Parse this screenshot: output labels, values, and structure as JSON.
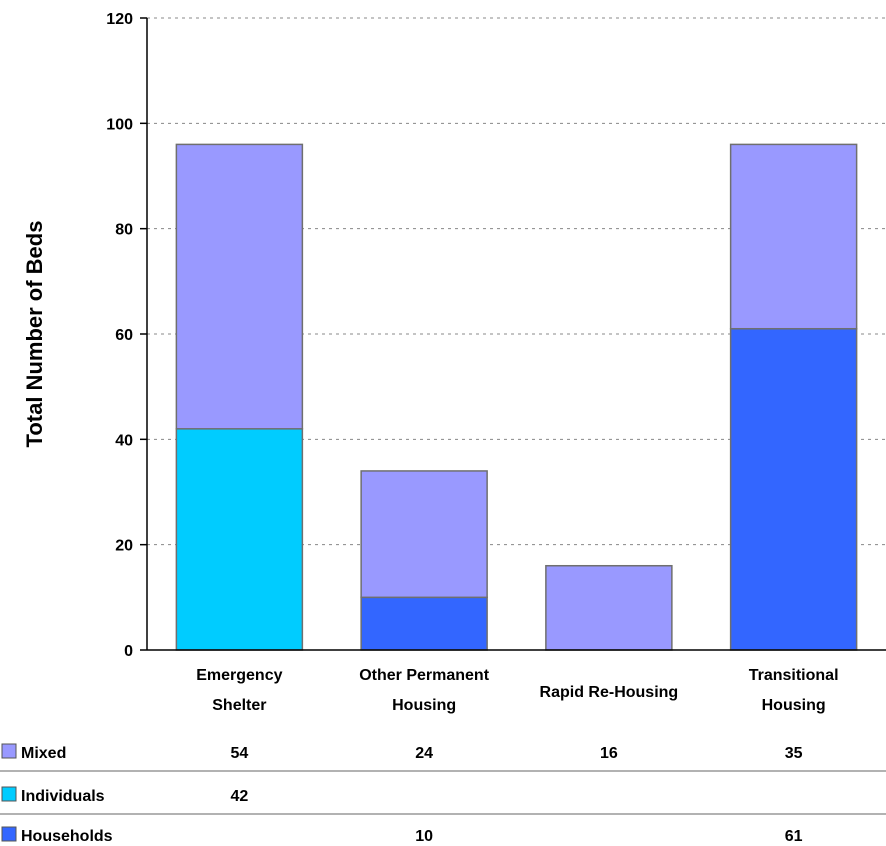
{
  "chart_data": {
    "type": "bar",
    "stacked": true,
    "categories": [
      [
        "Emergency",
        "Shelter"
      ],
      [
        "Other Permanent",
        "Housing"
      ],
      [
        "Rapid Re-Housing"
      ],
      [
        "Transitional",
        "Housing"
      ]
    ],
    "series": [
      {
        "name": "Households",
        "color": "#3366ff",
        "values": [
          null,
          10,
          null,
          61
        ]
      },
      {
        "name": "Individuals",
        "color": "#00ccff",
        "values": [
          42,
          null,
          null,
          null
        ]
      },
      {
        "name": "Mixed",
        "color": "#9999ff",
        "values": [
          54,
          24,
          16,
          35
        ]
      }
    ],
    "legend_order": [
      "Mixed",
      "Individuals",
      "Households"
    ],
    "ylabel": "Total Number of Beds",
    "ylim": [
      0,
      120
    ],
    "yticks": [
      0,
      20,
      40,
      60,
      80,
      100,
      120
    ],
    "grid": "horizontal-dashed",
    "data_table": true
  }
}
